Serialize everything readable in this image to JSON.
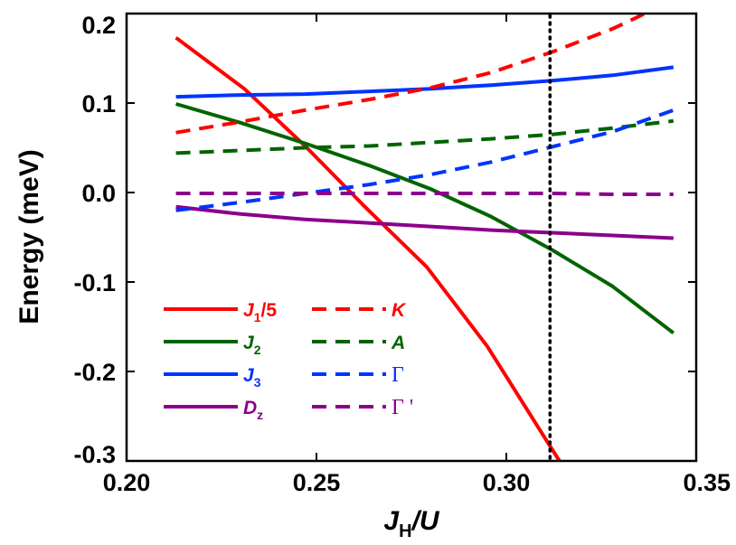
{
  "chart_data": {
    "type": "line",
    "title": "",
    "xlabel_main": "J",
    "xlabel_sub": "H",
    "xlabel_tail": "/U",
    "ylabel": "Energy (meV)",
    "xlim": [
      0.2,
      0.35
    ],
    "ylim": [
      -0.3,
      0.2
    ],
    "xticks": [
      0.2,
      0.25,
      0.3,
      0.35
    ],
    "xtick_labels": [
      "0.20",
      "0.25",
      "0.30",
      "0.35"
    ],
    "yticks": [
      -0.3,
      -0.2,
      -0.1,
      0.0,
      0.1,
      0.2
    ],
    "ytick_labels": [
      "-0.3",
      "-0.2",
      "-0.1",
      "0.0",
      "0.1",
      "0.2"
    ],
    "vline_x": 0.3115,
    "grid": false,
    "legend_placement": "bottom-left",
    "series": [
      {
        "key": "j1",
        "label_main": "J",
        "label_sub": "1",
        "label_tail": "/5",
        "greek": false,
        "color": "#ff0000",
        "dash": "solid",
        "x": [
          0.213,
          0.231,
          0.247,
          0.263,
          0.279,
          0.295,
          0.311,
          0.317
        ],
        "y": [
          0.173,
          0.116,
          0.052,
          -0.017,
          -0.083,
          -0.172,
          -0.28,
          -0.32
        ]
      },
      {
        "key": "j2",
        "label_main": "J",
        "label_sub": "2",
        "label_tail": "",
        "greek": false,
        "color": "#006400",
        "dash": "solid",
        "x": [
          0.213,
          0.23,
          0.247,
          0.264,
          0.28,
          0.296,
          0.312,
          0.328,
          0.344
        ],
        "y": [
          0.099,
          0.078,
          0.055,
          0.03,
          0.004,
          -0.027,
          -0.064,
          -0.105,
          -0.157
        ]
      },
      {
        "key": "j3",
        "label_main": "J",
        "label_sub": "3",
        "label_tail": "",
        "greek": false,
        "color": "#0033ff",
        "dash": "solid",
        "x": [
          0.213,
          0.23,
          0.247,
          0.264,
          0.28,
          0.296,
          0.312,
          0.328,
          0.344
        ],
        "y": [
          0.107,
          0.109,
          0.11,
          0.113,
          0.116,
          0.12,
          0.125,
          0.131,
          0.14
        ]
      },
      {
        "key": "dz",
        "label_main": "D",
        "label_sub": "z",
        "label_tail": "",
        "greek": false,
        "color": "#8b008b",
        "dash": "solid",
        "x": [
          0.213,
          0.23,
          0.247,
          0.264,
          0.28,
          0.296,
          0.312,
          0.328,
          0.344
        ],
        "y": [
          -0.016,
          -0.024,
          -0.03,
          -0.034,
          -0.038,
          -0.042,
          -0.045,
          -0.048,
          -0.051
        ]
      },
      {
        "key": "k",
        "label_main": "K",
        "label_sub": "",
        "label_tail": "",
        "greek": false,
        "color": "#ff0000",
        "dash": "dashed",
        "x": [
          0.213,
          0.23,
          0.247,
          0.264,
          0.28,
          0.296,
          0.312,
          0.328,
          0.344
        ],
        "y": [
          0.067,
          0.079,
          0.092,
          0.104,
          0.117,
          0.134,
          0.157,
          0.183,
          0.215
        ]
      },
      {
        "key": "a",
        "label_main": "A",
        "label_sub": "",
        "label_tail": "",
        "greek": false,
        "color": "#006400",
        "dash": "dashed",
        "x": [
          0.213,
          0.23,
          0.247,
          0.264,
          0.28,
          0.296,
          0.312,
          0.328,
          0.344
        ],
        "y": [
          0.044,
          0.047,
          0.05,
          0.052,
          0.056,
          0.06,
          0.065,
          0.072,
          0.08
        ]
      },
      {
        "key": "gamma",
        "label_main": "Γ",
        "label_sub": "",
        "label_tail": "",
        "greek": true,
        "color": "#0033ff",
        "dash": "dashed",
        "x": [
          0.213,
          0.23,
          0.247,
          0.264,
          0.28,
          0.296,
          0.312,
          0.328,
          0.344
        ],
        "y": [
          -0.02,
          -0.011,
          -0.001,
          0.009,
          0.02,
          0.034,
          0.051,
          0.068,
          0.092
        ]
      },
      {
        "key": "gammap",
        "label_main": "Γ '",
        "label_sub": "",
        "label_tail": "",
        "greek": true,
        "color": "#8b008b",
        "dash": "dashed",
        "x": [
          0.213,
          0.23,
          0.247,
          0.264,
          0.28,
          0.296,
          0.312,
          0.328,
          0.344
        ],
        "y": [
          -0.001,
          -0.001,
          -0.001,
          -0.001,
          -0.001,
          -0.001,
          -0.001,
          -0.002,
          -0.002
        ]
      }
    ]
  }
}
